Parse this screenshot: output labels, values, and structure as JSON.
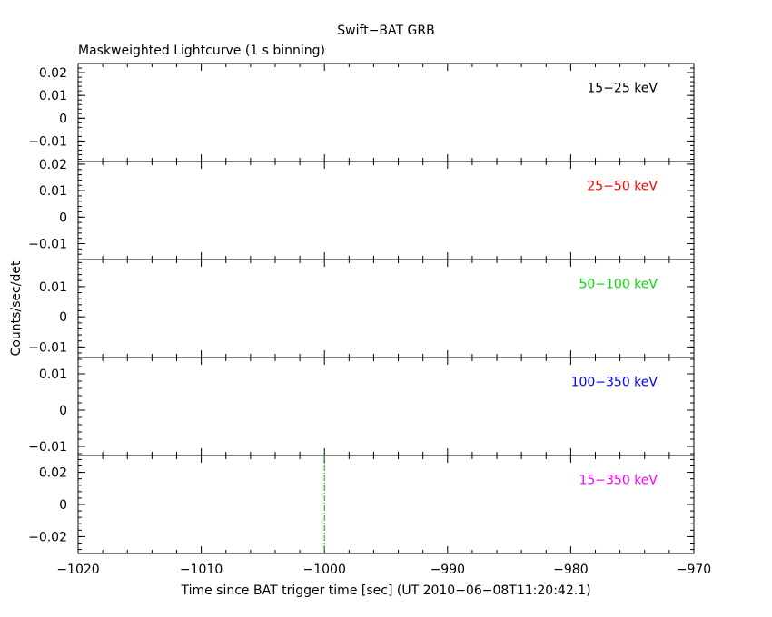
{
  "chart_data": {
    "type": "line",
    "title": "Swift−BAT GRB",
    "subtitle": "Maskweighted Lightcurve (1 s binning)",
    "xlabel": "Time since BAT trigger time [sec] (UT 2010−06−08T11:20:42.1)",
    "ylabel": "Counts/sec/det",
    "xlim": [
      -1020,
      -970
    ],
    "x_ticks": [
      {
        "value": -1020,
        "label": "−1020"
      },
      {
        "value": -1010,
        "label": "−1010"
      },
      {
        "value": -1000,
        "label": "−1000"
      },
      {
        "value": -990,
        "label": "−990"
      },
      {
        "value": -980,
        "label": "−980"
      },
      {
        "value": -970,
        "label": "−970"
      }
    ],
    "grid": false,
    "marker_line": {
      "x": -1000,
      "style": "dash-dot",
      "color": "#00aa00"
    },
    "panels": [
      {
        "label": "15−25 keV",
        "color": "#000000",
        "ylim": [
          -0.019,
          0.024
        ],
        "ticks": [
          {
            "value": 0.02,
            "label": "0.02"
          },
          {
            "value": 0.01,
            "label": "0.01"
          },
          {
            "value": 0,
            "label": "0"
          },
          {
            "value": -0.01,
            "label": "−0.01"
          }
        ],
        "values": []
      },
      {
        "label": "25−50 keV",
        "color": "#ff0000",
        "ylim": [
          -0.016,
          0.021
        ],
        "ticks": [
          {
            "value": 0.02,
            "label": "0.02"
          },
          {
            "value": 0.01,
            "label": "0.01"
          },
          {
            "value": 0,
            "label": "0"
          },
          {
            "value": -0.01,
            "label": "−0.01"
          }
        ],
        "values": []
      },
      {
        "label": "50−100 keV",
        "color": "#00dd00",
        "ylim": [
          -0.0135,
          0.019
        ],
        "ticks": [
          {
            "value": 0.01,
            "label": "0.01"
          },
          {
            "value": 0,
            "label": "0"
          },
          {
            "value": -0.01,
            "label": "−0.01"
          }
        ],
        "values": []
      },
      {
        "label": "100−350 keV",
        "color": "#0000ff",
        "ylim": [
          -0.0125,
          0.0145
        ],
        "ticks": [
          {
            "value": 0.01,
            "label": "0.01"
          },
          {
            "value": 0,
            "label": "0"
          },
          {
            "value": -0.01,
            "label": "−0.01"
          }
        ],
        "values": []
      },
      {
        "label": "15−350 keV",
        "color": "#ff00ff",
        "ylim": [
          -0.0305,
          0.0305
        ],
        "ticks": [
          {
            "value": 0.02,
            "label": "0.02"
          },
          {
            "value": 0,
            "label": "0"
          },
          {
            "value": -0.02,
            "label": "−0.02"
          }
        ],
        "values": []
      }
    ]
  }
}
